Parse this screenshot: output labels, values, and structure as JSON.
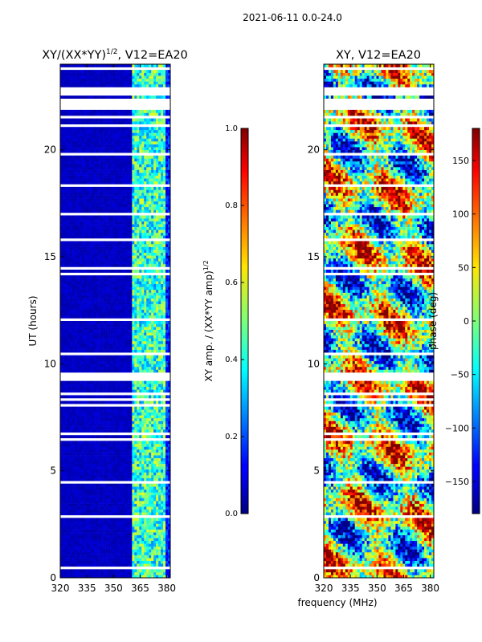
{
  "figure": {
    "suptitle": "2021-06-11 0.0-24.0",
    "shared_ylabel": "UT (hours)",
    "shared_xlabel": "frequency (MHz)"
  },
  "chart_data": [
    {
      "type": "heatmap",
      "title": "XY/(XX*YY)^1/2, V12=EA20",
      "title_base": "XY/(XX*YY)",
      "title_sup": "1/2",
      "title_tail": ", V12=EA20",
      "x_range": [
        320,
        382
      ],
      "x_ticks": [
        320,
        335,
        350,
        365,
        380
      ],
      "y_range": [
        0,
        24
      ],
      "y_ticks": [
        0,
        5,
        10,
        15,
        20
      ],
      "colormap": "jet",
      "colorbar": {
        "label_base": "XY amp. / (XX*YY amp)",
        "label_sup": "1/2",
        "range": [
          0.0,
          1.0
        ],
        "ticks": [
          "0.0",
          "0.2",
          "0.4",
          "0.6",
          "0.8",
          "1.0"
        ]
      }
    },
    {
      "type": "heatmap",
      "title": "XY, V12=EA20",
      "x_range": [
        320,
        382
      ],
      "x_ticks": [
        320,
        335,
        350,
        365,
        380
      ],
      "y_range": [
        0,
        24
      ],
      "y_ticks": [
        0,
        5,
        10,
        15,
        20
      ],
      "colormap": "jet",
      "colorbar": {
        "label": "phase (deg)",
        "range": [
          -180,
          180
        ],
        "ticks": [
          "−150",
          "−100",
          "−50",
          "0",
          "50",
          "100",
          "150"
        ],
        "tick_values": [
          -150,
          -100,
          -50,
          0,
          50,
          100,
          150
        ]
      }
    }
  ]
}
